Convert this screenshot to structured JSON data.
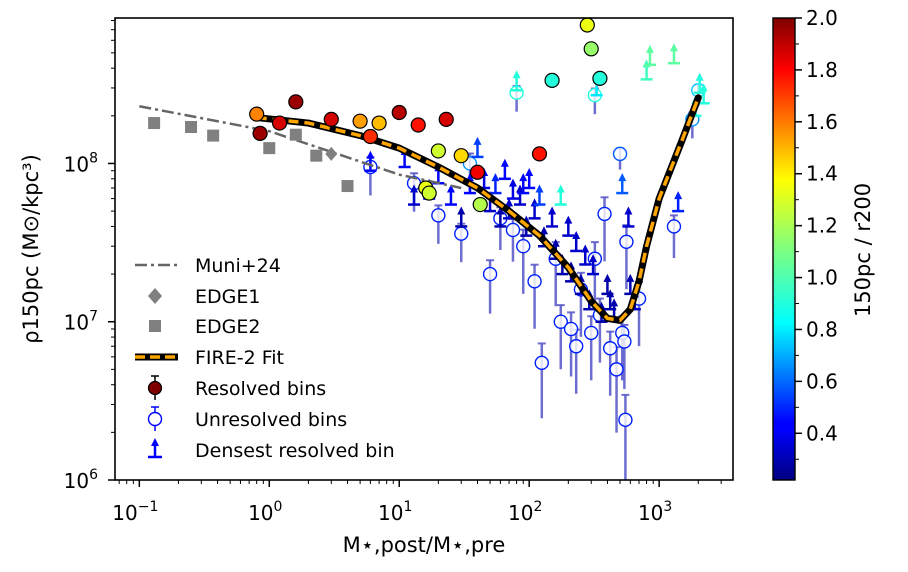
{
  "chart_data": {
    "type": "scatter",
    "xlabel": "M⋆,post/M⋆,pre",
    "ylabel": "ρ150pc (M⊙/kpc³)",
    "xscale": "log",
    "yscale": "log",
    "xlim": [
      0.065,
      3700
    ],
    "ylim": [
      1000000,
      830000000
    ],
    "x_ticks": [
      {
        "value": 0.1,
        "base": "10",
        "exp": "−1"
      },
      {
        "value": 1,
        "base": "10",
        "exp": "0"
      },
      {
        "value": 10,
        "base": "10",
        "exp": "1"
      },
      {
        "value": 100,
        "base": "10",
        "exp": "2"
      },
      {
        "value": 1000,
        "base": "10",
        "exp": "3"
      }
    ],
    "y_ticks": [
      {
        "value": 1000000,
        "base": "10",
        "exp": "6"
      },
      {
        "value": 10000000,
        "base": "10",
        "exp": "7"
      },
      {
        "value": 100000000,
        "base": "10",
        "exp": "8"
      }
    ],
    "colorbar": {
      "label": "150pc / r200",
      "min": 0.22,
      "max": 2.0,
      "ticks": [
        "0.4",
        "0.6",
        "0.8",
        "1.0",
        "1.2",
        "1.4",
        "1.6",
        "1.8",
        "2.0"
      ],
      "colormap": "jet"
    },
    "legend": {
      "placement": "lower-left",
      "entries": [
        {
          "key": "muni",
          "label": "Muni+24"
        },
        {
          "key": "edge1",
          "label": "EDGE1"
        },
        {
          "key": "edge2",
          "label": "EDGE2"
        },
        {
          "key": "fit",
          "label": "FIRE-2 Fit"
        },
        {
          "key": "resolved",
          "label": "Resolved bins"
        },
        {
          "key": "unresolved",
          "label": "Unresolved bins"
        },
        {
          "key": "densest",
          "label": "Densest resolved bin"
        }
      ]
    },
    "series": [
      {
        "name": "Muni+24",
        "kind": "dash-dot line",
        "color": "#666666",
        "x": [
          0.1,
          1,
          10,
          30
        ],
        "y": [
          230000000,
          160000000,
          85000000,
          70000000
        ]
      },
      {
        "name": "EDGE1",
        "kind": "diamond",
        "color": "#808080",
        "x": [
          3
        ],
        "y": [
          115000000
        ]
      },
      {
        "name": "EDGE2",
        "kind": "square",
        "color": "#808080",
        "x": [
          0.13,
          0.25,
          0.37,
          1.0,
          1.6,
          2.3,
          4.0
        ],
        "y": [
          180000000,
          170000000,
          150000000,
          125000000,
          152000000,
          112000000,
          72000000
        ]
      },
      {
        "name": "FIRE-2 Fit",
        "kind": "dashed line",
        "color": "#ffa500",
        "x": [
          0.8,
          2,
          5,
          10,
          20,
          40,
          70,
          120,
          200,
          300,
          400,
          500,
          600,
          700,
          800,
          1000,
          1500,
          2000
        ],
        "y": [
          195000000,
          180000000,
          150000000,
          125000000,
          95000000,
          70000000,
          50000000,
          35000000,
          22000000,
          13500000,
          10500000,
          10200000,
          12000000,
          18000000,
          30000000,
          60000000,
          140000000,
          260000000
        ]
      },
      {
        "name": "Resolved bins",
        "kind": "filled circle",
        "points": [
          [
            0.8,
            205000000,
            1.55
          ],
          [
            0.85,
            155000000,
            1.95
          ],
          [
            1.2,
            180000000,
            1.85
          ],
          [
            1.6,
            245000000,
            1.95
          ],
          [
            3.0,
            190000000,
            1.85
          ],
          [
            5.0,
            185000000,
            1.5
          ],
          [
            6.0,
            148000000,
            1.7
          ],
          [
            7.0,
            180000000,
            1.45
          ],
          [
            10,
            210000000,
            1.9
          ],
          [
            14,
            175000000,
            1.75
          ],
          [
            16,
            70000000,
            1.3
          ],
          [
            17,
            65000000,
            1.25
          ],
          [
            20,
            120000000,
            1.25
          ],
          [
            23,
            190000000,
            1.85
          ],
          [
            30,
            112000000,
            1.4
          ],
          [
            40,
            88000000,
            1.8
          ],
          [
            42,
            55000000,
            1.2
          ],
          [
            120,
            115000000,
            1.75
          ],
          [
            150,
            335000000,
            0.95
          ],
          [
            280,
            750000000,
            1.3
          ],
          [
            300,
            530000000,
            1.15
          ],
          [
            350,
            345000000,
            0.95
          ]
        ]
      },
      {
        "name": "Unresolved bins",
        "kind": "open circle",
        "points": [
          [
            6,
            95000000,
            0.5,
            0.18
          ],
          [
            13,
            75000000,
            0.5,
            0.18
          ],
          [
            20,
            47000000,
            0.5,
            0.18
          ],
          [
            30,
            36000000,
            0.5,
            0.18
          ],
          [
            35,
            100000000,
            0.7,
            0.18
          ],
          [
            50,
            20000000,
            0.5,
            0.25
          ],
          [
            60,
            45000000,
            0.5,
            0.2
          ],
          [
            75,
            38000000,
            0.5,
            0.2
          ],
          [
            80,
            280000000,
            0.95,
            0.12
          ],
          [
            90,
            30000000,
            0.5,
            0.3
          ],
          [
            110,
            18000000,
            0.5,
            0.3
          ],
          [
            125,
            5500000,
            0.5,
            0.35
          ],
          [
            160,
            25000000,
            0.5,
            0.3
          ],
          [
            175,
            10000000,
            0.5,
            0.3
          ],
          [
            210,
            9000000,
            0.5,
            0.3
          ],
          [
            230,
            7000000,
            0.5,
            0.3
          ],
          [
            250,
            16000000,
            0.5,
            0.3
          ],
          [
            300,
            8500000,
            0.5,
            0.3
          ],
          [
            320,
            25000000,
            0.5,
            0.3
          ],
          [
            350,
            11000000,
            0.5,
            0.3
          ],
          [
            380,
            48000000,
            0.5,
            0.3
          ],
          [
            420,
            6800000,
            0.5,
            0.3
          ],
          [
            470,
            5000000,
            0.5,
            0.4
          ],
          [
            500,
            115000000,
            0.6,
            0.1
          ],
          [
            520,
            8500000,
            0.5,
            0.3
          ],
          [
            540,
            7500000,
            0.5,
            0.3
          ],
          [
            550,
            2400000,
            0.5,
            0.45
          ],
          [
            560,
            32000000,
            0.5,
            0.3
          ],
          [
            700,
            14000000,
            0.5,
            0.3
          ],
          [
            1300,
            40000000,
            0.5,
            0.2
          ],
          [
            1800,
            190000000,
            0.7,
            0.12
          ],
          [
            2000,
            290000000,
            0.8,
            0.1
          ],
          [
            320,
            270000000,
            0.95,
            0.12
          ]
        ]
      },
      {
        "name": "Densest resolved bin",
        "kind": "lower-limit arrow",
        "points": [
          [
            6,
            90000000,
            0.45
          ],
          [
            11,
            95000000,
            0.45
          ],
          [
            13,
            55000000,
            0.35
          ],
          [
            17,
            60000000,
            0.45
          ],
          [
            20,
            75000000,
            0.45
          ],
          [
            25,
            55000000,
            0.45
          ],
          [
            30,
            40000000,
            0.3
          ],
          [
            35,
            65000000,
            0.45
          ],
          [
            40,
            110000000,
            0.55
          ],
          [
            45,
            70000000,
            0.4
          ],
          [
            50,
            50000000,
            0.35
          ],
          [
            55,
            65000000,
            0.5
          ],
          [
            60,
            40000000,
            0.3
          ],
          [
            65,
            80000000,
            0.45
          ],
          [
            70,
            45000000,
            0.35
          ],
          [
            75,
            60000000,
            0.4
          ],
          [
            80,
            290000000,
            0.95
          ],
          [
            85,
            55000000,
            0.35
          ],
          [
            90,
            65000000,
            0.45
          ],
          [
            95,
            35000000,
            0.3
          ],
          [
            100,
            70000000,
            0.45
          ],
          [
            110,
            45000000,
            0.35
          ],
          [
            120,
            55000000,
            0.55
          ],
          [
            130,
            30000000,
            0.3
          ],
          [
            150,
            40000000,
            0.35
          ],
          [
            160,
            25000000,
            0.3
          ],
          [
            175,
            55000000,
            0.95
          ],
          [
            180,
            20000000,
            0.3
          ],
          [
            200,
            35000000,
            0.35
          ],
          [
            210,
            18000000,
            0.3
          ],
          [
            230,
            28000000,
            0.35
          ],
          [
            250,
            15000000,
            0.3
          ],
          [
            270,
            23000000,
            0.35
          ],
          [
            290,
            12000000,
            0.3
          ],
          [
            310,
            20000000,
            0.35
          ],
          [
            330,
            270000000,
            0.85
          ],
          [
            360,
            10000000,
            0.3
          ],
          [
            400,
            15000000,
            0.3
          ],
          [
            420,
            12000000,
            0.3
          ],
          [
            450,
            10500000,
            0.3
          ],
          [
            520,
            65000000,
            0.6
          ],
          [
            580,
            40000000,
            0.35
          ],
          [
            600,
            15000000,
            0.3
          ],
          [
            650,
            12000000,
            0.35
          ],
          [
            800,
            340000000,
            1.0
          ],
          [
            850,
            420000000,
            1.05
          ],
          [
            1300,
            430000000,
            1.05
          ],
          [
            1400,
            50000000,
            0.5
          ],
          [
            1900,
            200000000,
            0.95
          ],
          [
            2050,
            280000000,
            0.95
          ],
          [
            2200,
            240000000,
            0.95
          ]
        ]
      }
    ]
  }
}
